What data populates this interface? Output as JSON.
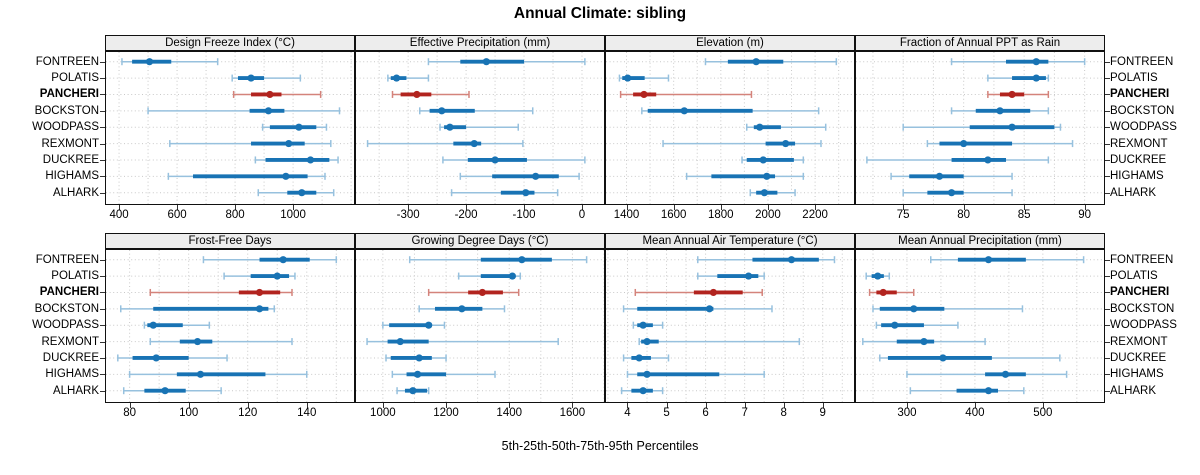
{
  "title": "Annual Climate: sibling",
  "caption": "5th-25th-50th-75th-95th Percentiles",
  "colors": {
    "primary": "#1873b4",
    "primary_light": "#97c1de",
    "highlight": "#b2241f",
    "highlight_light": "#d4837b",
    "grid": "#c9c9c9",
    "axis": "#333333",
    "strip_bg": "#ededed",
    "border": "#111111"
  },
  "chart_data": {
    "type": "dotplot-intervals",
    "subtype": "trellis 2x4, horizontal percentile intervals per station",
    "percentiles": [
      5,
      25,
      50,
      75,
      95
    ],
    "stations": [
      "FONTREEN",
      "POLATIS",
      "PANCHERI",
      "BOCKSTON",
      "WOODPASS",
      "REXMONT",
      "DUCKREE",
      "HIGHAMS",
      "ALHARK"
    ],
    "highlight_station": "PANCHERI",
    "legend_note": "thin line with caps = 5th-95th, thick bar = 25th-75th, dot = median",
    "panels": [
      {
        "title": "Design Freeze Index (°C)",
        "xlim": [
          355,
          1210
        ],
        "ticks": [
          400,
          600,
          800,
          1000
        ],
        "minor_step": 100,
        "values": {
          "FONTREEN": [
            410,
            445,
            505,
            580,
            740
          ],
          "POLATIS": [
            790,
            810,
            855,
            900,
            1025
          ],
          "PANCHERI": [
            795,
            855,
            920,
            960,
            1095
          ],
          "BOCKSTON": [
            500,
            850,
            915,
            970,
            1160
          ],
          "WOODPASS": [
            895,
            920,
            1020,
            1080,
            1115
          ],
          "REXMONT": [
            575,
            855,
            985,
            1040,
            1130
          ],
          "DUCKREE": [
            870,
            905,
            1060,
            1125,
            1155
          ],
          "HIGHAMS": [
            570,
            655,
            975,
            1050,
            1110
          ],
          "ALHARK": [
            880,
            980,
            1030,
            1080,
            1140
          ]
        }
      },
      {
        "title": "Effective Precipitation (mm)",
        "xlim": [
          -390,
          38
        ],
        "ticks": [
          -300,
          -200,
          -100,
          0
        ],
        "minor_step": 50,
        "values": {
          "FONTREEN": [
            -265,
            -210,
            -165,
            -100,
            5
          ],
          "POLATIS": [
            -335,
            -330,
            -320,
            -303,
            -265
          ],
          "PANCHERI": [
            -327,
            -313,
            -285,
            -260,
            -195
          ],
          "BOCKSTON": [
            -280,
            -263,
            -242,
            -185,
            -85
          ],
          "WOODPASS": [
            -245,
            -238,
            -228,
            -200,
            -110
          ],
          "REXMONT": [
            -370,
            -222,
            -186,
            -174,
            -102
          ],
          "DUCKREE": [
            -240,
            -197,
            -150,
            -95,
            5
          ],
          "HIGHAMS": [
            -210,
            -155,
            -80,
            -40,
            -5
          ],
          "ALHARK": [
            -225,
            -140,
            -97,
            -82,
            -42
          ]
        }
      },
      {
        "title": "Elevation (m)",
        "xlim": [
          1313,
          2365
        ],
        "ticks": [
          1400,
          1600,
          1800,
          2000,
          2200
        ],
        "minor_step": 100,
        "values": {
          "FONTREEN": [
            1735,
            1830,
            1950,
            2065,
            2290
          ],
          "POLATIS": [
            1370,
            1382,
            1405,
            1477,
            1578
          ],
          "PANCHERI": [
            1375,
            1428,
            1474,
            1526,
            1930
          ],
          "BOCKSTON": [
            1465,
            1490,
            1645,
            1935,
            2215
          ],
          "WOODPASS": [
            1910,
            1940,
            1965,
            2055,
            2245
          ],
          "REXMONT": [
            1555,
            1990,
            2075,
            2115,
            2225
          ],
          "DUCKREE": [
            1890,
            1910,
            1980,
            2110,
            2150
          ],
          "HIGHAMS": [
            1655,
            1760,
            1995,
            2030,
            2150
          ],
          "ALHARK": [
            1925,
            1950,
            1985,
            2040,
            2115
          ]
        }
      },
      {
        "title": "Fraction of Annual PPT as Rain",
        "xlim": [
          71.1,
          91.6
        ],
        "ticks": [
          75,
          80,
          85,
          90
        ],
        "minor_step": 2.5,
        "values": {
          "FONTREEN": [
            79,
            83.5,
            86,
            87,
            90
          ],
          "POLATIS": [
            82,
            84,
            86,
            86.8,
            87
          ],
          "PANCHERI": [
            82,
            83,
            84,
            85,
            87
          ],
          "BOCKSTON": [
            79,
            81,
            83,
            85.5,
            87
          ],
          "WOODPASS": [
            75,
            80.5,
            84,
            87.5,
            88
          ],
          "REXMONT": [
            77,
            78,
            80,
            84,
            89
          ],
          "DUCKREE": [
            72,
            79,
            82,
            83.5,
            87
          ],
          "HIGHAMS": [
            74,
            75.5,
            78,
            80,
            84
          ],
          "ALHARK": [
            75,
            77,
            79,
            80,
            84
          ]
        }
      },
      {
        "title": "Frost-Free Days",
        "xlim": [
          72,
          156
        ],
        "ticks": [
          80,
          100,
          120,
          140
        ],
        "minor_step": 10,
        "values": {
          "FONTREEN": [
            105,
            124,
            132,
            141,
            150
          ],
          "POLATIS": [
            112,
            121,
            130,
            134,
            136
          ],
          "PANCHERI": [
            87,
            117,
            124,
            131,
            135
          ],
          "BOCKSTON": [
            77,
            88,
            124,
            127,
            129
          ],
          "WOODPASS": [
            85,
            86,
            88,
            98,
            107
          ],
          "REXMONT": [
            87,
            97,
            103,
            108,
            135
          ],
          "DUCKREE": [
            76,
            81,
            89,
            100,
            113
          ],
          "HIGHAMS": [
            80,
            96,
            104,
            126,
            140
          ],
          "ALHARK": [
            78,
            85,
            92,
            99,
            111
          ]
        }
      },
      {
        "title": "Growing Degree Days (°C)",
        "xlim": [
          915,
          1700
        ],
        "ticks": [
          1000,
          1200,
          1400,
          1600
        ],
        "minor_step": 100,
        "values": {
          "FONTREEN": [
            1085,
            1310,
            1440,
            1535,
            1645
          ],
          "POLATIS": [
            1240,
            1310,
            1410,
            1420,
            1435
          ],
          "PANCHERI": [
            1145,
            1270,
            1315,
            1380,
            1430
          ],
          "BOCKSTON": [
            1115,
            1165,
            1250,
            1315,
            1385
          ],
          "WOODPASS": [
            1000,
            1020,
            1145,
            1155,
            1195
          ],
          "REXMONT": [
            950,
            1015,
            1055,
            1145,
            1555
          ],
          "DUCKREE": [
            1010,
            1025,
            1115,
            1155,
            1200
          ],
          "HIGHAMS": [
            1030,
            1075,
            1110,
            1200,
            1355
          ],
          "ALHARK": [
            1045,
            1070,
            1095,
            1140,
            1145
          ]
        }
      },
      {
        "title": "Mean Annual Air Temperature (°C)",
        "xlim": [
          3.45,
          9.8
        ],
        "ticks": [
          4,
          5,
          6,
          7,
          8,
          9
        ],
        "minor_step": 0.5,
        "values": {
          "FONTREEN": [
            5.8,
            7.2,
            8.2,
            8.9,
            9.3
          ],
          "POLATIS": [
            5.8,
            6.3,
            7.1,
            7.35,
            7.5
          ],
          "PANCHERI": [
            4.2,
            5.7,
            6.2,
            6.95,
            7.45
          ],
          "BOCKSTON": [
            3.9,
            4.25,
            6.1,
            6.2,
            7.7
          ],
          "WOODPASS": [
            4.15,
            4.25,
            4.4,
            4.65,
            4.9
          ],
          "REXMONT": [
            4.3,
            4.35,
            4.5,
            4.8,
            8.4
          ],
          "DUCKREE": [
            3.9,
            4.1,
            4.3,
            4.6,
            5.05
          ],
          "HIGHAMS": [
            4.0,
            4.25,
            4.5,
            6.35,
            7.5
          ],
          "ALHARK": [
            3.85,
            4.1,
            4.4,
            4.65,
            4.9
          ]
        }
      },
      {
        "title": "Mean Annual Precipitation (mm)",
        "xlim": [
          225,
          590
        ],
        "ticks": [
          300,
          400,
          500
        ],
        "minor_step": 50,
        "values": {
          "FONTREEN": [
            335,
            375,
            420,
            475,
            560
          ],
          "POLATIS": [
            240,
            248,
            257,
            266,
            274
          ],
          "PANCHERI": [
            245,
            255,
            265,
            285,
            310
          ],
          "BOCKSTON": [
            250,
            260,
            310,
            355,
            470
          ],
          "WOODPASS": [
            255,
            262,
            282,
            325,
            375
          ],
          "REXMONT": [
            235,
            285,
            325,
            340,
            415
          ],
          "DUCKREE": [
            260,
            272,
            353,
            425,
            525
          ],
          "HIGHAMS": [
            300,
            415,
            445,
            475,
            535
          ],
          "ALHARK": [
            305,
            373,
            420,
            434,
            472
          ]
        }
      }
    ]
  }
}
